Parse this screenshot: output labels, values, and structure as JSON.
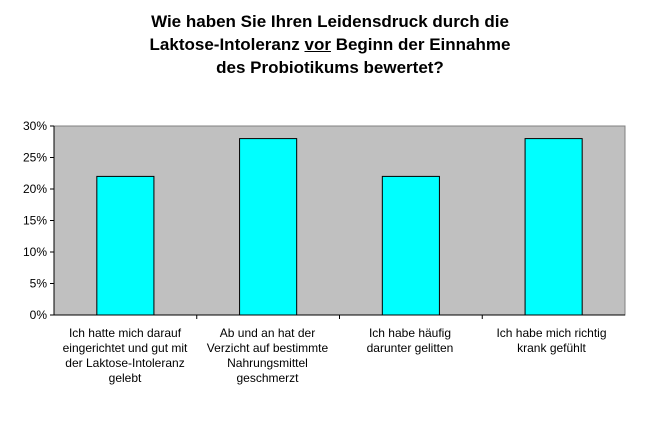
{
  "title_parts": [
    "Wie haben Sie Ihren Leidensdruck durch die",
    "Laktose-Intoleranz",
    "vor",
    "Beginn der Einnahme",
    "des Probiotikums bewertet?"
  ],
  "colors": {
    "plot_bg": "#c0c0c0",
    "bar": "#00ffff",
    "bar_stroke": "#000000"
  },
  "chart_data": {
    "type": "bar",
    "title": "Wie haben Sie Ihren Leidensdruck durch die Laktose-Intoleranz vor Beginn der Einnahme des Probiotikums bewertet?",
    "categories": [
      "Ich hatte mich darauf eingerichtet und gut mit der Laktose-Intoleranz gelebt",
      "Ab und an hat der Verzicht auf bestimmte Nahrungsmittel geschmerzt",
      "Ich habe häufig darunter gelitten",
      "Ich habe mich richtig krank gefühlt"
    ],
    "values": [
      22,
      28,
      22,
      28
    ],
    "ylim": [
      0,
      30
    ],
    "yticks": [
      "0%",
      "5%",
      "10%",
      "15%",
      "20%",
      "25%",
      "30%"
    ],
    "xlabel": "",
    "ylabel": "",
    "grid": false,
    "legend": "none"
  }
}
